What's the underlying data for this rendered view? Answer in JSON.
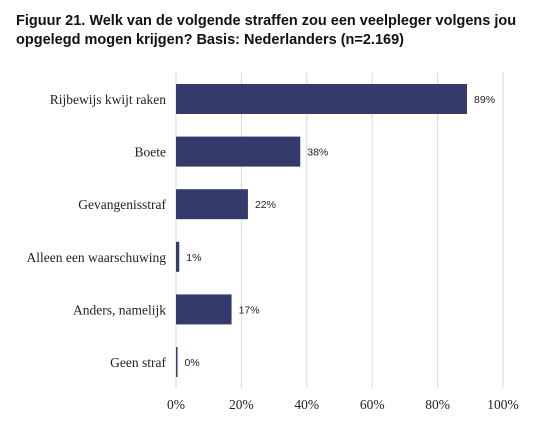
{
  "figure": {
    "title_line1": "Figuur 21. Welk van de volgende straffen zou een veelpleger volgens jou",
    "title_line2": "opgelegd mogen krijgen? Basis: Nederlanders (n=2.169)"
  },
  "chart_data": {
    "type": "bar",
    "orientation": "horizontal",
    "title": "Figuur 21. Welk van de volgende straffen zou een veelpleger volgens jou opgelegd mogen krijgen? Basis: Nederlanders (n=2.169)",
    "categories": [
      "Rijbewijs kwijt raken",
      "Boete",
      "Gevangenisstraf",
      "Alleen een waarschuwing",
      "Anders, namelijk",
      "Geen straf"
    ],
    "values": [
      89,
      38,
      22,
      1,
      17,
      0
    ],
    "data_labels": [
      "89%",
      "38%",
      "22%",
      "1%",
      "17%",
      "0%"
    ],
    "xlim": [
      0,
      100
    ],
    "xticks": [
      0,
      20,
      40,
      60,
      80,
      100
    ],
    "xtick_labels": [
      "0%",
      "20%",
      "40%",
      "60%",
      "80%",
      "100%"
    ],
    "xlabel": "",
    "ylabel": "",
    "grid": "vertical",
    "legend": "none",
    "bar_color": "#343a6b",
    "grid_color": "#d9d9d9"
  }
}
